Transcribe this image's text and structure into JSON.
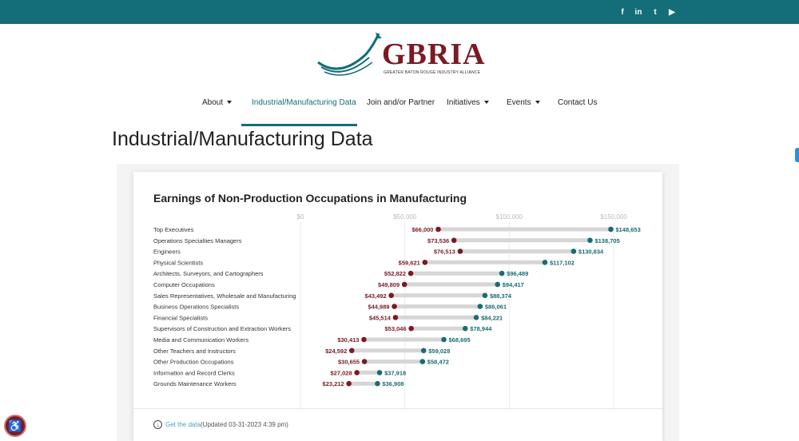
{
  "header": {
    "social": [
      {
        "icon": "facebook-icon",
        "glyph": "f"
      },
      {
        "icon": "linkedin-icon",
        "glyph": "in"
      },
      {
        "icon": "twitter-icon",
        "glyph": "t"
      },
      {
        "icon": "youtube-icon",
        "glyph": "▶"
      }
    ]
  },
  "logo": {
    "name": "GBRIA",
    "tagline": "GREATER BATON ROUGE INDUSTRY ALLIANCE"
  },
  "nav": {
    "items": [
      {
        "label": "About",
        "dropdown": true,
        "active": false
      },
      {
        "label": "Industrial/Manufacturing Data",
        "dropdown": false,
        "active": true
      },
      {
        "label": "Join and/or Partner",
        "dropdown": false,
        "active": false
      },
      {
        "label": "Initiatives",
        "dropdown": true,
        "active": false
      },
      {
        "label": "Events",
        "dropdown": true,
        "active": false
      },
      {
        "label": "Contact Us",
        "dropdown": false,
        "active": false
      }
    ]
  },
  "page": {
    "title": "Industrial/Manufacturing Data"
  },
  "chart_data": {
    "type": "dumbbell",
    "title": "Earnings of Non-Production Occupations in Manufacturing",
    "xlim": [
      0,
      150000
    ],
    "ticks": [
      0,
      50000,
      100000,
      150000
    ],
    "tick_labels": [
      "$0",
      "$50,000",
      "$100,000",
      "$150,000"
    ],
    "categories": [
      "Top Executives",
      "Operations Specialties Managers",
      "Engineers",
      "Physical Scientists",
      "Architects, Surveyors, and Cartographers",
      "Computer Occupations",
      "Sales Representatives, Wholesale and Manufacturing",
      "Business Operations Specialists",
      "Financial Specialists",
      "Supervisors of Construction and Extraction Workers",
      "Media and Communication Workers",
      "Other Teachers and Instructors",
      "Other Production Occupations",
      "Information and Record Clerks",
      "Grounds Maintenance Workers"
    ],
    "series": [
      {
        "color": "#7a1a24",
        "values": [
          66000,
          73536,
          76513,
          59621,
          52822,
          49809,
          43492,
          44989,
          45514,
          53046,
          30413,
          24592,
          30655,
          27028,
          23212
        ],
        "labels": [
          "$66,000",
          "$73,536",
          "$76,513",
          "$59,621",
          "$52,822",
          "$49,809",
          "$43,492",
          "$44,989",
          "$45,514",
          "$53,046",
          "$30,413",
          "$24,592",
          "$30,655",
          "$27,028",
          "$23,212"
        ]
      },
      {
        "color": "#1a6b72",
        "values": [
          148653,
          138705,
          130834,
          117102,
          96489,
          94417,
          88374,
          86061,
          84221,
          78944,
          68695,
          59028,
          58472,
          37918,
          36908
        ],
        "labels": [
          "$148,653",
          "$138,705",
          "$130,834",
          "$117,102",
          "$96,489",
          "$94,417",
          "$88,374",
          "$86,061",
          "$84,221",
          "$78,944",
          "$68,695",
          "$59,028",
          "$58,472",
          "$37,918",
          "$36,908"
        ]
      }
    ],
    "grid": true
  },
  "footer": {
    "get_data_label": "Get the data",
    "updated": "(Updated 03-31-2023 4:39 pm)"
  }
}
